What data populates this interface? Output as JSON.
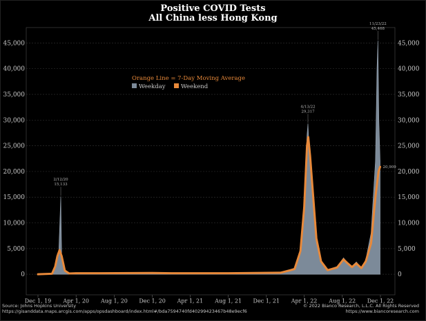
{
  "chart_data": {
    "type": "area",
    "title": "Positive COVID Tests",
    "subtitle": "All China less Hong Kong",
    "legend": {
      "title": "Orange Line = 7-Day Moving Average",
      "placement": "top-left",
      "items": [
        {
          "label": "Weekday",
          "color": "#7c8a99"
        },
        {
          "label": "Weekend",
          "color": "#e8893a"
        }
      ]
    },
    "x_ticks": [
      "Dec 1, 19",
      "Apr 1, 20",
      "Aug 1, 20",
      "Dec 1, 20",
      "Apr 1, 21",
      "Aug 1, 21",
      "Dec 1, 21",
      "Apr 1, 22",
      "Aug 1, 22",
      "Dec 1, 22"
    ],
    "x_tick_dates": [
      "2019-12-01",
      "2020-04-01",
      "2020-08-01",
      "2020-12-01",
      "2021-04-01",
      "2021-08-01",
      "2021-12-01",
      "2022-04-01",
      "2022-08-01",
      "2022-12-01"
    ],
    "y_ticks": [
      0,
      5000,
      10000,
      15000,
      20000,
      25000,
      30000,
      35000,
      40000,
      45000
    ],
    "y_tick_labels": [
      "0",
      "5,000",
      "10,000",
      "15,000",
      "20,000",
      "25,000",
      "30,000",
      "35,000",
      "40,000",
      "45,000"
    ],
    "ylim": [
      -4000,
      48000
    ],
    "grid": true,
    "series": [
      {
        "name": "Weekday",
        "color": "#7c8a99",
        "points": [
          [
            "2019-12-01",
            0
          ],
          [
            "2020-01-15",
            100
          ],
          [
            "2020-01-25",
            1500
          ],
          [
            "2020-02-01",
            4000
          ],
          [
            "2020-02-05",
            3500
          ],
          [
            "2020-02-12",
            15133
          ],
          [
            "2020-02-15",
            3000
          ],
          [
            "2020-02-25",
            800
          ],
          [
            "2020-03-10",
            100
          ],
          [
            "2020-04-01",
            200
          ],
          [
            "2020-06-15",
            200
          ],
          [
            "2020-12-01",
            150
          ],
          [
            "2021-02-01",
            300
          ],
          [
            "2021-08-01",
            200
          ],
          [
            "2022-01-15",
            300
          ],
          [
            "2022-03-01",
            1200
          ],
          [
            "2022-03-20",
            5000
          ],
          [
            "2022-04-01",
            14000
          ],
          [
            "2022-04-10",
            27000
          ],
          [
            "2022-04-13",
            29317
          ],
          [
            "2022-04-20",
            21000
          ],
          [
            "2022-04-30",
            13000
          ],
          [
            "2022-05-10",
            6000
          ],
          [
            "2022-05-25",
            2200
          ],
          [
            "2022-06-15",
            900
          ],
          [
            "2022-07-15",
            1500
          ],
          [
            "2022-08-05",
            3200
          ],
          [
            "2022-08-15",
            2400
          ],
          [
            "2022-09-01",
            1600
          ],
          [
            "2022-09-15",
            2400
          ],
          [
            "2022-10-01",
            1200
          ],
          [
            "2022-10-15",
            2800
          ],
          [
            "2022-11-01",
            8000
          ],
          [
            "2022-11-15",
            22000
          ],
          [
            "2022-11-20",
            40000
          ],
          [
            "2022-11-23",
            45468
          ],
          [
            "2022-11-26",
            30000
          ],
          [
            "2022-11-30",
            22000
          ]
        ]
      },
      {
        "name": "Weekend",
        "color": "#e8893a",
        "points": [
          [
            "2019-12-01",
            0
          ],
          [
            "2020-01-15",
            100
          ],
          [
            "2020-01-25",
            1500
          ],
          [
            "2020-02-01",
            3500
          ],
          [
            "2020-02-08",
            4700
          ],
          [
            "2020-02-15",
            3500
          ],
          [
            "2020-02-25",
            700
          ],
          [
            "2020-03-10",
            150
          ],
          [
            "2020-04-01",
            200
          ],
          [
            "2020-06-15",
            200
          ],
          [
            "2020-12-01",
            250
          ],
          [
            "2021-02-01",
            200
          ],
          [
            "2021-08-01",
            200
          ],
          [
            "2022-01-15",
            300
          ],
          [
            "2022-03-01",
            1000
          ],
          [
            "2022-03-20",
            4500
          ],
          [
            "2022-04-01",
            13000
          ],
          [
            "2022-04-10",
            25000
          ],
          [
            "2022-04-14",
            26700
          ],
          [
            "2022-04-20",
            23000
          ],
          [
            "2022-04-30",
            15000
          ],
          [
            "2022-05-10",
            7000
          ],
          [
            "2022-05-25",
            2500
          ],
          [
            "2022-06-15",
            800
          ],
          [
            "2022-07-15",
            1300
          ],
          [
            "2022-08-05",
            2900
          ],
          [
            "2022-08-15",
            2300
          ],
          [
            "2022-09-01",
            1400
          ],
          [
            "2022-09-15",
            2100
          ],
          [
            "2022-10-01",
            1200
          ],
          [
            "2022-10-15",
            2500
          ],
          [
            "2022-11-01",
            6000
          ],
          [
            "2022-11-15",
            15000
          ],
          [
            "2022-11-25",
            20000
          ],
          [
            "2022-11-30",
            20909
          ]
        ]
      }
    ],
    "annotations": [
      {
        "date_label": "2/12/20",
        "value_label": "15,133",
        "x": "2020-02-12",
        "y": 15133
      },
      {
        "date_label": "4/13/22",
        "value_label": "29,317",
        "x": "2022-04-13",
        "y": 29317
      },
      {
        "date_label": "11/23/22",
        "value_label": "45,468",
        "x": "2022-11-23",
        "y": 45468
      },
      {
        "date_label": "",
        "value_label": "20,909",
        "x": "2022-11-30",
        "y": 20909
      }
    ]
  },
  "footer": {
    "source": "Source: Johns Hopkins University",
    "url": "https://gisanddata.maps.arcgis.com/apps/opsdashboard/index.html#/bda7594740fd40299423467b48e9ecf6",
    "copyright": "© 2022 Bianco Research, L.L.C. All Rights Reserved",
    "website": "https://www.biancoresearch.com"
  }
}
